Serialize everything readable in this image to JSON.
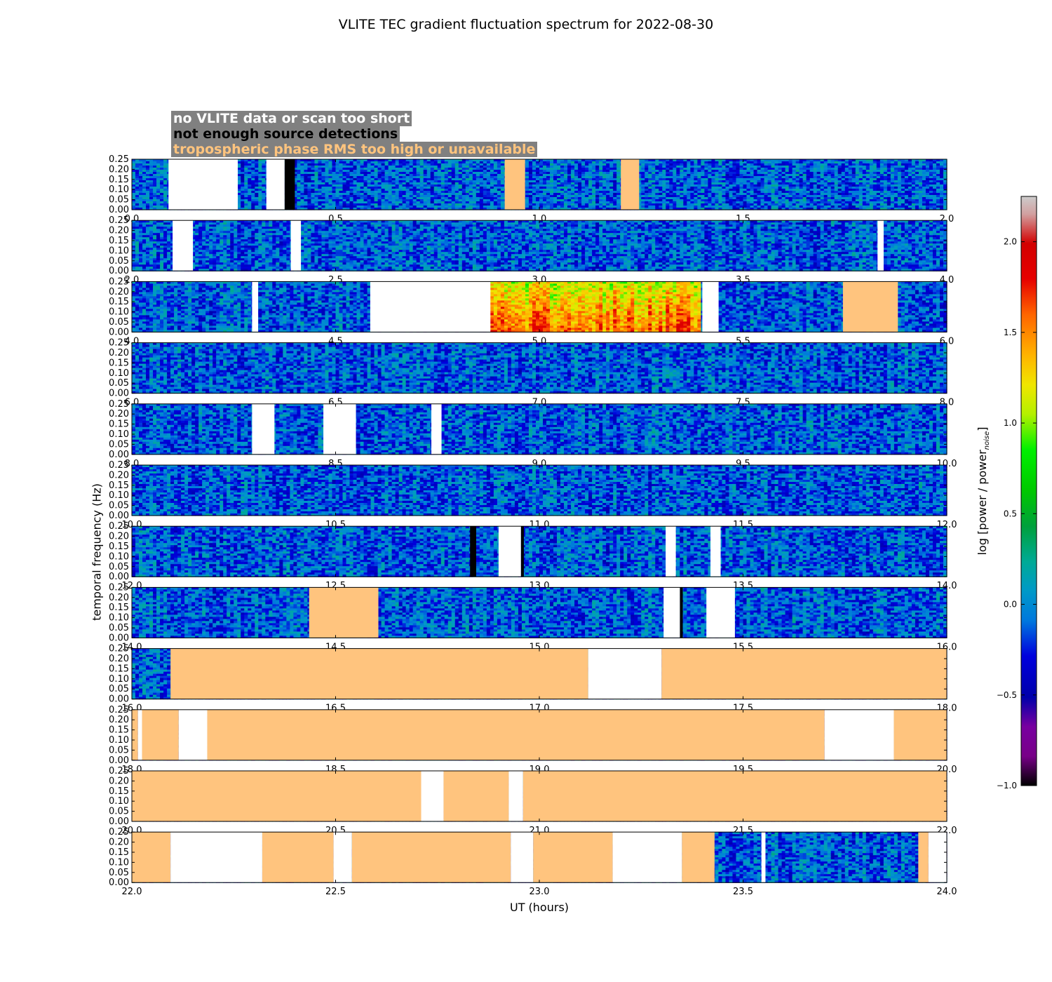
{
  "title": "VLITE TEC gradient fluctuation spectrum for 2022-08-30",
  "legend": {
    "white": "no VLITE data or scan too short",
    "black": "not enough source detections",
    "orange": "tropospheric phase RMS too high or unavailable"
  },
  "colors": {
    "white": "#ffffff",
    "black": "#000000",
    "orange": "#ffc47e",
    "legend_bg": "#808080"
  },
  "chart_data": {
    "type": "heatmap",
    "title": "VLITE TEC gradient fluctuation spectrum for 2022-08-30",
    "xlabel": "UT (hours)",
    "ylabel": "temporal frequency (Hz)",
    "yticks": [
      "0.00",
      "0.05",
      "0.10",
      "0.15",
      "0.20",
      "0.25"
    ],
    "ylim": [
      0,
      0.25
    ],
    "colorbar": {
      "label": "log [power / power",
      "label_sub": "noise",
      "label_end": "]",
      "range": [
        -1.0,
        2.25
      ],
      "ticks": [
        "−1.0",
        "−0.5",
        "0.0",
        "0.5",
        "1.0",
        "1.5",
        "2.0"
      ],
      "colormap": "nipy_spectral"
    },
    "panels": [
      {
        "xlim": [
          0,
          2
        ],
        "xticks": [
          "0.0",
          "0.5",
          "1.0",
          "1.5",
          "2.0"
        ],
        "flags": [
          {
            "start": 0.09,
            "end": 0.26,
            "kind": "white"
          },
          {
            "start": 0.33,
            "end": 0.375,
            "kind": "white"
          },
          {
            "start": 0.375,
            "end": 0.4,
            "kind": "black"
          },
          {
            "start": 0.915,
            "end": 0.965,
            "kind": "orange"
          },
          {
            "start": 1.2,
            "end": 1.245,
            "kind": "orange"
          }
        ]
      },
      {
        "xlim": [
          2,
          4
        ],
        "xticks": [
          "2.0",
          "2.5",
          "3.0",
          "3.5",
          "4.0"
        ],
        "flags": [
          {
            "start": 2.1,
            "end": 2.15,
            "kind": "white"
          },
          {
            "start": 2.39,
            "end": 2.415,
            "kind": "white"
          },
          {
            "start": 3.83,
            "end": 3.845,
            "kind": "white"
          }
        ]
      },
      {
        "xlim": [
          4,
          6
        ],
        "xticks": [
          "4.0",
          "4.5",
          "5.0",
          "5.5",
          "6.0"
        ],
        "enhanced": {
          "start": 4.88,
          "end": 5.4
        },
        "flags": [
          {
            "start": 4.295,
            "end": 4.31,
            "kind": "white"
          },
          {
            "start": 4.585,
            "end": 4.88,
            "kind": "white"
          },
          {
            "start": 5.4,
            "end": 5.44,
            "kind": "white"
          },
          {
            "start": 5.745,
            "end": 5.88,
            "kind": "orange"
          }
        ]
      },
      {
        "xlim": [
          6,
          8
        ],
        "xticks": [
          "6.0",
          "6.5",
          "7.0",
          "7.5",
          "8.0"
        ],
        "flags": []
      },
      {
        "xlim": [
          8,
          10
        ],
        "xticks": [
          "8.0",
          "8.5",
          "9.0",
          "9.5",
          "10.0"
        ],
        "flags": [
          {
            "start": 8.295,
            "end": 8.35,
            "kind": "white"
          },
          {
            "start": 8.47,
            "end": 8.55,
            "kind": "white"
          },
          {
            "start": 8.735,
            "end": 8.76,
            "kind": "white"
          }
        ]
      },
      {
        "xlim": [
          10,
          12
        ],
        "xticks": [
          "10.0",
          "10.5",
          "11.0",
          "11.5",
          "12.0"
        ],
        "flags": []
      },
      {
        "xlim": [
          12,
          14
        ],
        "xticks": [
          "12.0",
          "12.5",
          "13.0",
          "13.5",
          "14.0"
        ],
        "flags": [
          {
            "start": 12.83,
            "end": 12.845,
            "kind": "black"
          },
          {
            "start": 12.9,
            "end": 12.955,
            "kind": "white"
          },
          {
            "start": 12.955,
            "end": 12.962,
            "kind": "black"
          },
          {
            "start": 13.31,
            "end": 13.335,
            "kind": "white"
          },
          {
            "start": 13.42,
            "end": 13.445,
            "kind": "white"
          }
        ]
      },
      {
        "xlim": [
          14,
          16
        ],
        "xticks": [
          "14.0",
          "14.5",
          "15.0",
          "15.5",
          "16.0"
        ],
        "flags": [
          {
            "start": 14.435,
            "end": 14.605,
            "kind": "orange"
          },
          {
            "start": 15.305,
            "end": 15.345,
            "kind": "white"
          },
          {
            "start": 15.345,
            "end": 15.352,
            "kind": "black"
          },
          {
            "start": 15.41,
            "end": 15.48,
            "kind": "white"
          }
        ]
      },
      {
        "xlim": [
          16,
          18
        ],
        "xticks": [
          "16.0",
          "16.5",
          "17.0",
          "17.5",
          "18.0"
        ],
        "flags": [
          {
            "start": 16.095,
            "end": 17.12,
            "kind": "orange"
          },
          {
            "start": 17.12,
            "end": 17.3,
            "kind": "white"
          },
          {
            "start": 17.3,
            "end": 18.0,
            "kind": "orange"
          }
        ]
      },
      {
        "xlim": [
          18,
          20
        ],
        "xticks": [
          "18.0",
          "18.5",
          "19.0",
          "19.5",
          "20.0"
        ],
        "flags": [
          {
            "start": 18.0,
            "end": 18.015,
            "kind": "orange"
          },
          {
            "start": 18.015,
            "end": 18.025,
            "kind": "white"
          },
          {
            "start": 18.025,
            "end": 18.115,
            "kind": "orange"
          },
          {
            "start": 18.115,
            "end": 18.185,
            "kind": "white"
          },
          {
            "start": 18.185,
            "end": 19.7,
            "kind": "orange"
          },
          {
            "start": 19.7,
            "end": 19.87,
            "kind": "white"
          },
          {
            "start": 19.87,
            "end": 20.0,
            "kind": "orange"
          }
        ]
      },
      {
        "xlim": [
          20,
          22
        ],
        "xticks": [
          "20.0",
          "20.5",
          "21.0",
          "21.5",
          "22.0"
        ],
        "flags": [
          {
            "start": 20.0,
            "end": 20.71,
            "kind": "orange"
          },
          {
            "start": 20.71,
            "end": 20.765,
            "kind": "white"
          },
          {
            "start": 20.765,
            "end": 20.925,
            "kind": "orange"
          },
          {
            "start": 20.925,
            "end": 20.96,
            "kind": "white"
          },
          {
            "start": 20.96,
            "end": 22.0,
            "kind": "orange"
          }
        ]
      },
      {
        "xlim": [
          22,
          24
        ],
        "xticks": [
          "22.0",
          "22.5",
          "23.0",
          "23.5",
          "24.0"
        ],
        "flags": [
          {
            "start": 22.0,
            "end": 22.095,
            "kind": "orange"
          },
          {
            "start": 22.095,
            "end": 22.32,
            "kind": "white"
          },
          {
            "start": 22.32,
            "end": 22.495,
            "kind": "orange"
          },
          {
            "start": 22.495,
            "end": 22.54,
            "kind": "white"
          },
          {
            "start": 22.54,
            "end": 22.93,
            "kind": "orange"
          },
          {
            "start": 22.93,
            "end": 22.985,
            "kind": "white"
          },
          {
            "start": 22.985,
            "end": 23.18,
            "kind": "orange"
          },
          {
            "start": 23.18,
            "end": 23.35,
            "kind": "white"
          },
          {
            "start": 23.35,
            "end": 23.43,
            "kind": "orange"
          },
          {
            "start": 23.545,
            "end": 23.555,
            "kind": "white"
          },
          {
            "start": 23.93,
            "end": 23.955,
            "kind": "orange"
          },
          {
            "start": 23.955,
            "end": 24.0,
            "kind": "white"
          }
        ]
      }
    ]
  }
}
